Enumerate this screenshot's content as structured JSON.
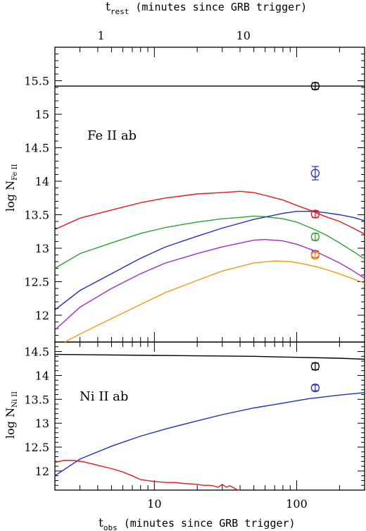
{
  "chart_data": [
    {
      "type": "line",
      "panel": "top",
      "annotation": "Fe II ab",
      "ylabel": "log N",
      "ylabel_sub": "Fe II",
      "xscale": "log",
      "xlim": [
        2,
        300
      ],
      "ylim": [
        11.6,
        16.0
      ],
      "yticks": [
        12,
        12.5,
        13,
        13.5,
        14,
        14.5,
        15,
        15.5
      ],
      "top_axis": {
        "label": "t",
        "label_sub": "rest",
        "label_rest": " (minutes since GRB trigger)",
        "ticks": [
          {
            "label": "1",
            "x_obs": 4.22
          },
          {
            "label": "10",
            "x_obs": 42.2
          }
        ]
      },
      "series": [
        {
          "color": "#000000",
          "x": [
            2,
            10,
            50,
            100,
            300
          ],
          "y": [
            15.42,
            15.42,
            15.42,
            15.42,
            15.42
          ]
        },
        {
          "color": "#e41a1c",
          "x": [
            2,
            3,
            5,
            8,
            12,
            20,
            30,
            40,
            50,
            60,
            80,
            100,
            130,
            160,
            200,
            250,
            300
          ],
          "y": [
            13.28,
            13.45,
            13.57,
            13.68,
            13.75,
            13.81,
            13.83,
            13.85,
            13.83,
            13.79,
            13.72,
            13.64,
            13.55,
            13.47,
            13.4,
            13.3,
            13.21
          ]
        },
        {
          "color": "#2ca02c",
          "x": [
            2,
            3,
            5,
            8,
            12,
            20,
            30,
            40,
            50,
            60,
            80,
            100,
            130,
            160,
            200,
            250,
            300
          ],
          "y": [
            12.7,
            12.92,
            13.08,
            13.22,
            13.31,
            13.39,
            13.44,
            13.46,
            13.48,
            13.47,
            13.44,
            13.39,
            13.29,
            13.2,
            13.08,
            12.95,
            12.84
          ]
        },
        {
          "color": "#1f2fbf",
          "x": [
            2,
            3,
            5,
            8,
            12,
            20,
            30,
            50,
            80,
            100,
            130,
            160,
            200,
            250,
            300
          ],
          "y": [
            12.08,
            12.37,
            12.62,
            12.85,
            13.02,
            13.18,
            13.3,
            13.43,
            13.52,
            13.55,
            13.55,
            13.53,
            13.5,
            13.46,
            13.41
          ]
        },
        {
          "color": "#9b30c8",
          "x": [
            2,
            3,
            5,
            8,
            12,
            20,
            30,
            50,
            60,
            80,
            100,
            130,
            160,
            200,
            250,
            300
          ],
          "y": [
            11.78,
            12.12,
            12.4,
            12.62,
            12.78,
            12.92,
            13.02,
            13.12,
            13.13,
            13.11,
            13.06,
            12.97,
            12.88,
            12.78,
            12.66,
            12.55
          ]
        },
        {
          "color": "#f39c12",
          "x": [
            2.35,
            3,
            5,
            8,
            12,
            20,
            30,
            50,
            70,
            90,
            110,
            140,
            180,
            230,
            300
          ],
          "y": [
            11.6,
            11.72,
            11.95,
            12.16,
            12.34,
            12.52,
            12.66,
            12.78,
            12.81,
            12.8,
            12.77,
            12.72,
            12.65,
            12.57,
            12.48
          ]
        }
      ],
      "points": [
        {
          "color": "#000000",
          "x": 135,
          "y": 15.42,
          "err": 0.05
        },
        {
          "color": "#1f2fbf",
          "x": 135,
          "y": 14.12,
          "err": 0.1
        },
        {
          "color": "#e41a1c",
          "x": 135,
          "y": 13.51,
          "err": 0.05
        },
        {
          "color": "#2ca02c",
          "x": 135,
          "y": 13.17,
          "err": 0.05
        },
        {
          "color": "#9b30c8",
          "x": 135,
          "y": 12.91,
          "err": 0.05
        },
        {
          "color": "#f39c12",
          "x": 135,
          "y": 12.89,
          "err": 0.04
        }
      ]
    },
    {
      "type": "line",
      "panel": "bottom",
      "annotation": "Ni II ab",
      "ylabel": "log N",
      "ylabel_sub": "Ni II",
      "xscale": "log",
      "xlim": [
        2,
        300
      ],
      "ylim": [
        11.6,
        14.7
      ],
      "yticks": [
        12,
        12.5,
        13,
        13.5,
        14,
        14.5
      ],
      "xticks": [
        {
          "label": "10",
          "x": 10
        },
        {
          "label": "100",
          "x": 100
        }
      ],
      "xlabel": "t",
      "xlabel_sub": "obs",
      "xlabel_rest": " (minutes since GRB trigger)",
      "series": [
        {
          "color": "#000000",
          "x": [
            2,
            10,
            50,
            100,
            200,
            300
          ],
          "y": [
            14.44,
            14.42,
            14.4,
            14.38,
            14.36,
            14.34
          ]
        },
        {
          "color": "#1f2fbf",
          "x": [
            2,
            3,
            5,
            8,
            12,
            20,
            30,
            50,
            80,
            120,
            200,
            300
          ],
          "y": [
            11.9,
            12.25,
            12.52,
            12.73,
            12.88,
            13.05,
            13.18,
            13.32,
            13.42,
            13.51,
            13.59,
            13.64
          ]
        },
        {
          "color": "#e41a1c",
          "x": [
            2,
            2.3,
            2.7,
            3.2,
            4,
            5,
            6,
            7,
            8,
            10,
            12,
            14,
            16,
            18,
            20,
            22,
            24,
            26,
            28,
            30,
            32,
            34,
            36,
            38,
            40
          ],
          "y": [
            12.18,
            12.22,
            12.22,
            12.19,
            12.12,
            12.05,
            11.98,
            11.9,
            11.82,
            11.78,
            11.76,
            11.76,
            11.74,
            11.73,
            11.72,
            11.7,
            11.7,
            11.69,
            11.66,
            11.72,
            11.66,
            11.69,
            11.65,
            11.61,
            11.6
          ]
        }
      ],
      "points": [
        {
          "color": "#000000",
          "x": 135,
          "y": 14.19,
          "err": 0.07
        },
        {
          "color": "#1f2fbf",
          "x": 135,
          "y": 13.74,
          "err": 0.06
        }
      ]
    }
  ]
}
